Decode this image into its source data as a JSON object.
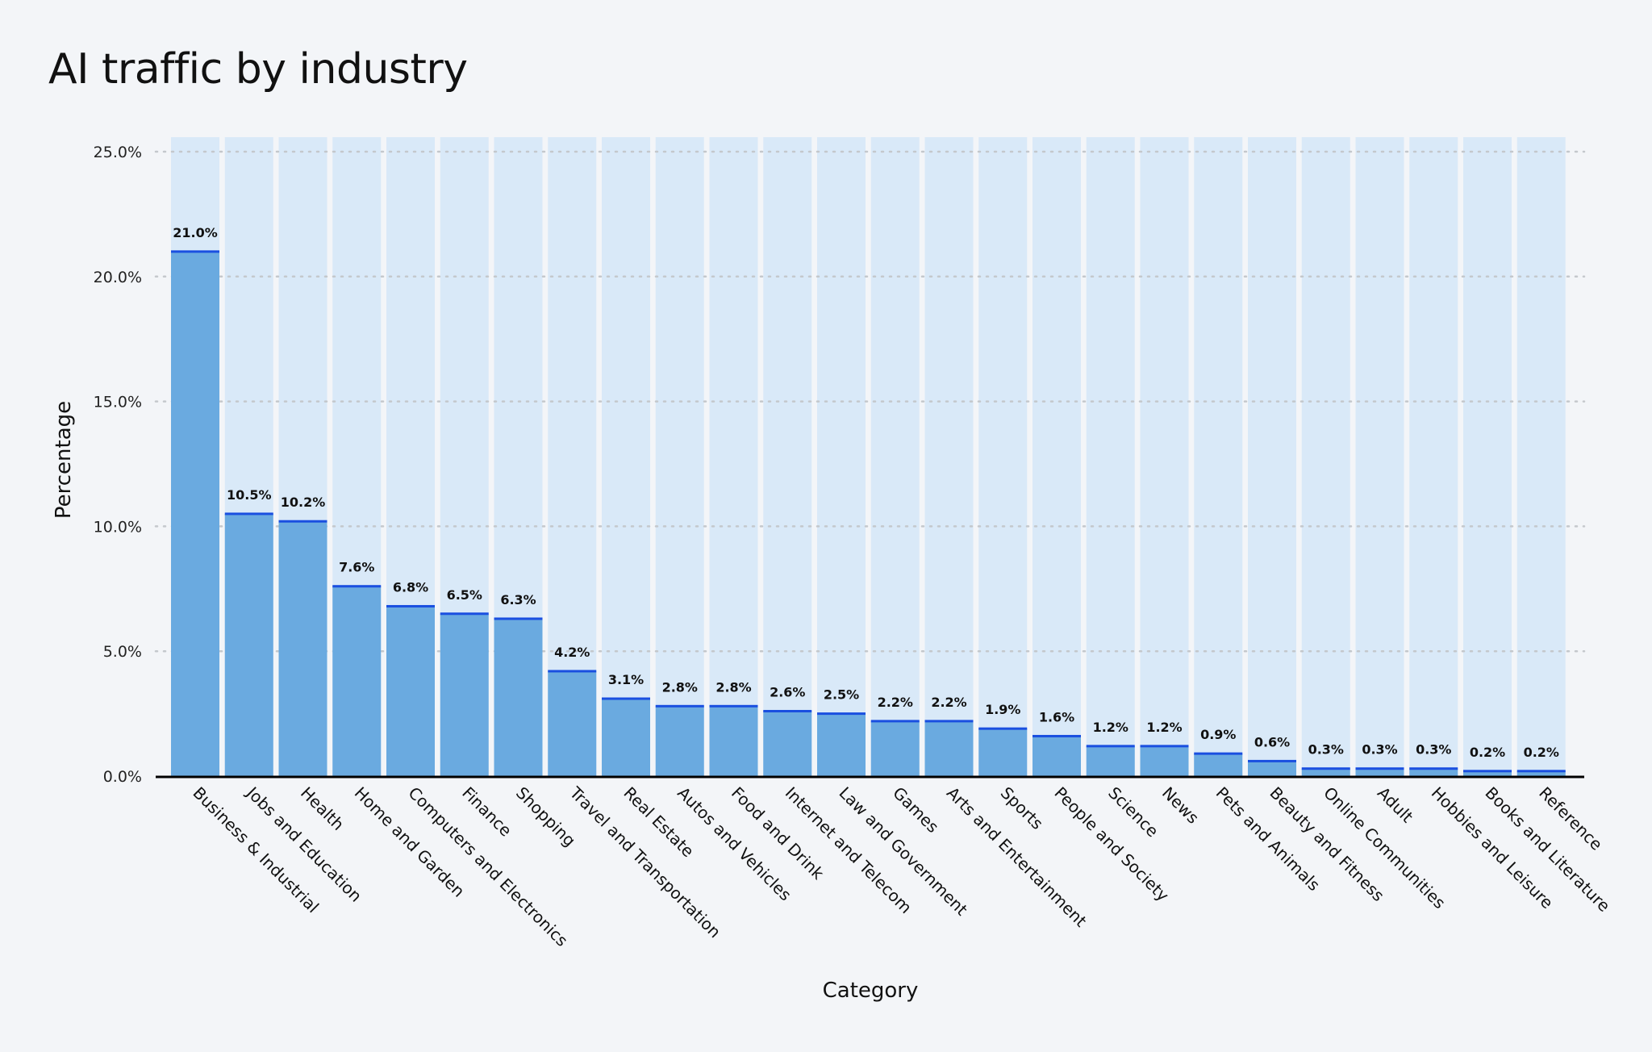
{
  "title": "AI traffic by industry",
  "chart_data": {
    "type": "bar",
    "title": "AI traffic by industry",
    "xlabel": "Category",
    "ylabel": "Percentage",
    "ylim": [
      0,
      25
    ],
    "yticks": [
      "0.0%",
      "5.0%",
      "10.0%",
      "15.0%",
      "20.0%",
      "25.0%"
    ],
    "grid": "horizontal dotted",
    "categories": [
      "Business & Industrial",
      "Jobs and Education",
      "Health",
      "Home and Garden",
      "Computers and Electronics",
      "Finance",
      "Shopping",
      "Travel and Transportation",
      "Real Estate",
      "Autos and Vehicles",
      "Food and Drink",
      "Internet and Telecom",
      "Law and Government",
      "Games",
      "Arts and Entertainment",
      "Sports",
      "People and Society",
      "Science",
      "News",
      "Pets and Animals",
      "Beauty and Fitness",
      "Online Communities",
      "Adult",
      "Hobbies and Leisure",
      "Books and Literature",
      "Reference"
    ],
    "values": [
      21.0,
      10.5,
      10.2,
      7.6,
      6.8,
      6.5,
      6.3,
      4.2,
      3.1,
      2.8,
      2.8,
      2.6,
      2.5,
      2.2,
      2.2,
      1.9,
      1.6,
      1.2,
      1.2,
      0.9,
      0.6,
      0.3,
      0.3,
      0.3,
      0.2,
      0.2
    ],
    "labels": [
      "21.0%",
      "10.5%",
      "10.2%",
      "7.6%",
      "6.8%",
      "6.5%",
      "6.3%",
      "4.2%",
      "3.1%",
      "2.8%",
      "2.8%",
      "2.6%",
      "2.5%",
      "2.2%",
      "2.2%",
      "1.9%",
      "1.6%",
      "1.2%",
      "1.2%",
      "0.9%",
      "0.6%",
      "0.3%",
      "0.3%",
      "0.3%",
      "0.2%",
      "0.2%"
    ],
    "colors": {
      "background": "#f3f5f8",
      "track": "#d9e9f8",
      "bar": "#6aaae0",
      "bar_top": "#1a4fe0",
      "axis": "#000000",
      "grid": "#c4c8cc"
    }
  }
}
